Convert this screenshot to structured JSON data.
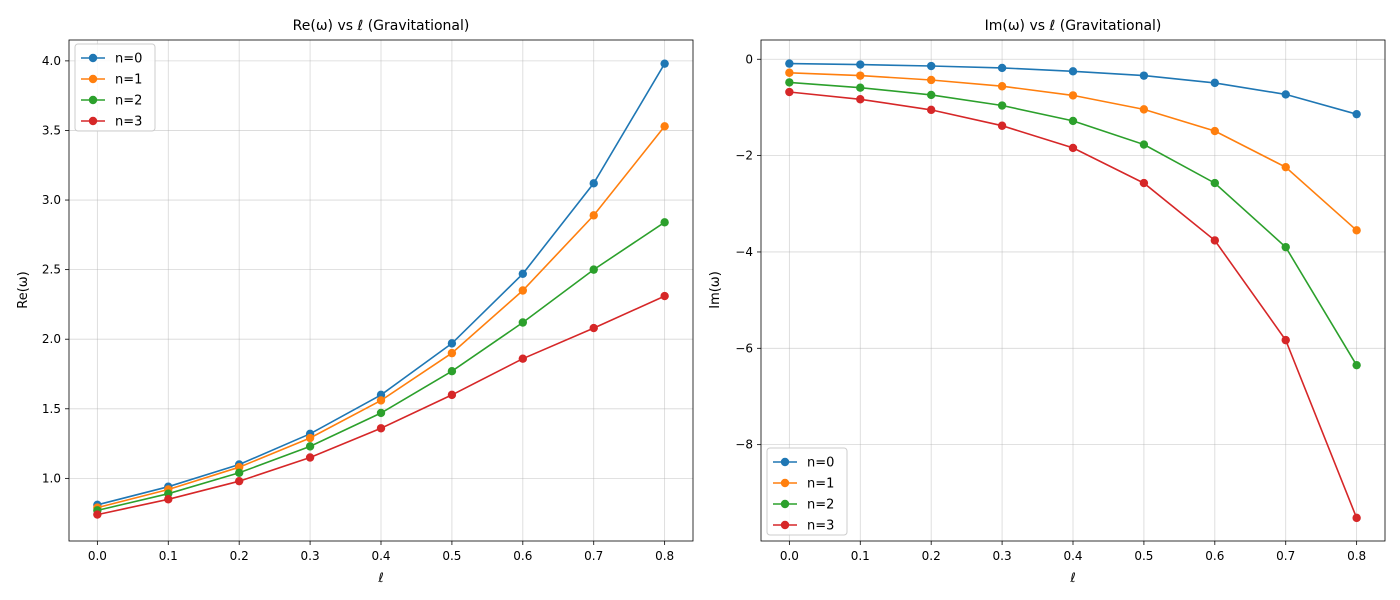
{
  "chart_data": [
    {
      "type": "line",
      "title": "Re(ω) vs ℓ (Gravitational)",
      "xlabel": "ℓ",
      "ylabel": "Re(ω)",
      "xlim": [
        -0.04,
        0.84
      ],
      "ylim": [
        0.55,
        4.15
      ],
      "xticks": [
        0.0,
        0.1,
        0.2,
        0.3,
        0.4,
        0.5,
        0.6,
        0.7,
        0.8
      ],
      "yticks": [
        1.0,
        1.5,
        2.0,
        2.5,
        3.0,
        3.5,
        4.0
      ],
      "grid": true,
      "legend": "top-left",
      "x": [
        0.0,
        0.1,
        0.2,
        0.3,
        0.4,
        0.5,
        0.6,
        0.7,
        0.8
      ],
      "series": [
        {
          "name": "n=0",
          "color": "#1f77b4",
          "values": [
            0.81,
            0.94,
            1.1,
            1.32,
            1.6,
            1.97,
            2.47,
            3.12,
            3.98
          ]
        },
        {
          "name": "n=1",
          "color": "#ff7f0e",
          "values": [
            0.79,
            0.92,
            1.08,
            1.29,
            1.56,
            1.9,
            2.35,
            2.89,
            3.53
          ]
        },
        {
          "name": "n=2",
          "color": "#2ca02c",
          "values": [
            0.77,
            0.89,
            1.04,
            1.23,
            1.47,
            1.77,
            2.12,
            2.5,
            2.84
          ]
        },
        {
          "name": "n=3",
          "color": "#d62728",
          "values": [
            0.74,
            0.85,
            0.98,
            1.15,
            1.36,
            1.6,
            1.86,
            2.08,
            2.31
          ]
        }
      ]
    },
    {
      "type": "line",
      "title": "Im(ω) vs ℓ (Gravitational)",
      "xlabel": "ℓ",
      "ylabel": "Im(ω)",
      "xlim": [
        -0.04,
        0.84
      ],
      "ylim": [
        -10.0,
        0.4
      ],
      "xticks": [
        0.0,
        0.1,
        0.2,
        0.3,
        0.4,
        0.5,
        0.6,
        0.7,
        0.8
      ],
      "yticks": [
        -8,
        -6,
        -4,
        -2,
        0
      ],
      "yticklabels": [
        "−8",
        "−6",
        "−4",
        "−2",
        "0"
      ],
      "grid": true,
      "legend": "bottom-left",
      "x": [
        0.0,
        0.1,
        0.2,
        0.3,
        0.4,
        0.5,
        0.6,
        0.7,
        0.8
      ],
      "series": [
        {
          "name": "n=0",
          "color": "#1f77b4",
          "values": [
            -0.09,
            -0.11,
            -0.14,
            -0.18,
            -0.25,
            -0.34,
            -0.49,
            -0.73,
            -1.14
          ]
        },
        {
          "name": "n=1",
          "color": "#ff7f0e",
          "values": [
            -0.28,
            -0.34,
            -0.43,
            -0.56,
            -0.75,
            -1.04,
            -1.49,
            -2.24,
            -3.55
          ]
        },
        {
          "name": "n=2",
          "color": "#2ca02c",
          "values": [
            -0.48,
            -0.59,
            -0.74,
            -0.96,
            -1.28,
            -1.77,
            -2.57,
            -3.9,
            -6.35
          ]
        },
        {
          "name": "n=3",
          "color": "#d62728",
          "values": [
            -0.68,
            -0.83,
            -1.05,
            -1.38,
            -1.84,
            -2.57,
            -3.76,
            -5.83,
            -9.52
          ]
        }
      ]
    }
  ]
}
